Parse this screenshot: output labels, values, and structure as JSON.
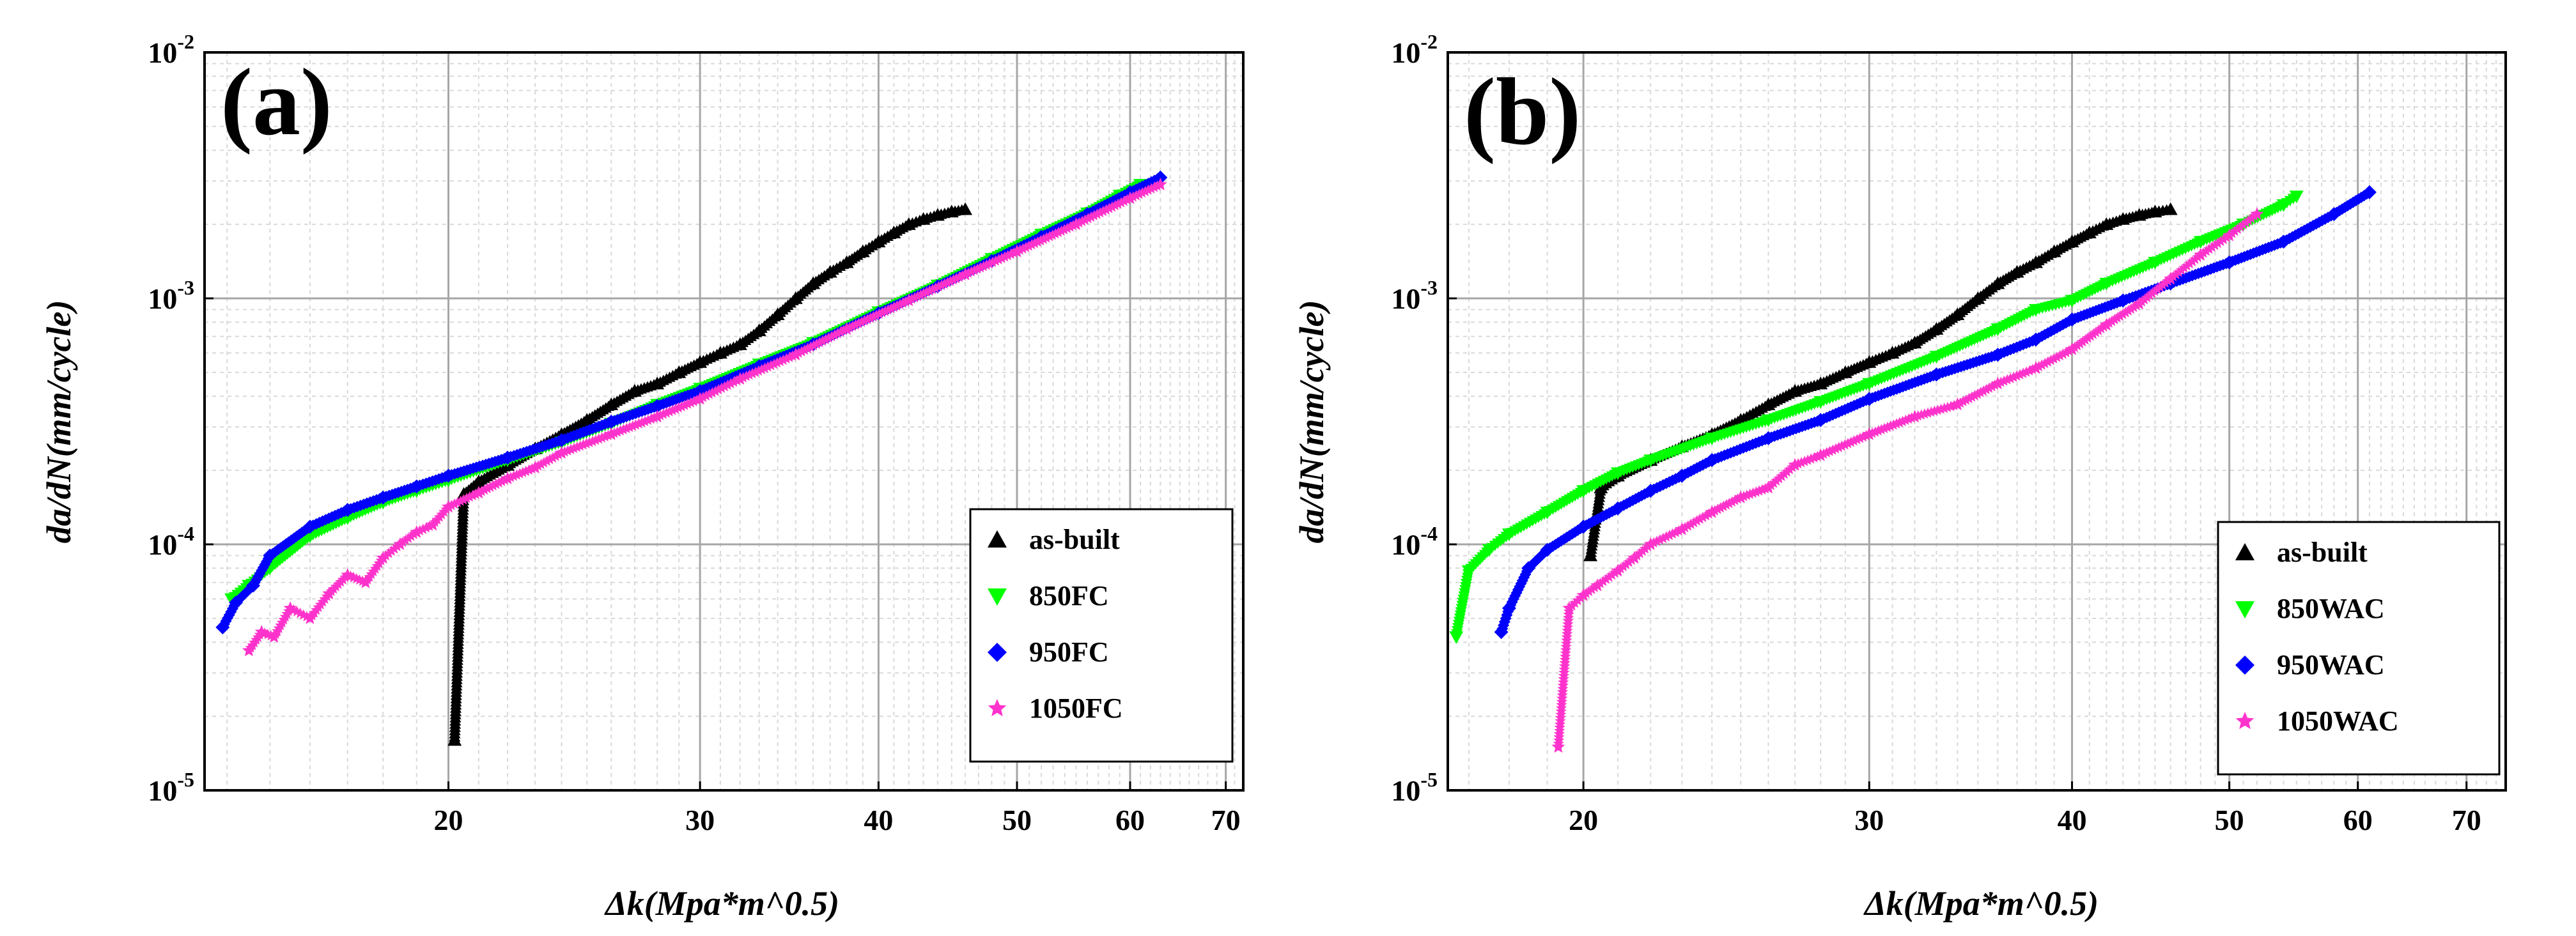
{
  "chart_data": [
    {
      "type": "scatter",
      "panel_label": "(a)",
      "xlabel": "Δk(Mpa*m^0.5)",
      "ylabel": "da/dN(mm/cycle)",
      "xscale": "log",
      "yscale": "log",
      "xlim": [
        13.5,
        72
      ],
      "ylim": [
        1e-05,
        0.01
      ],
      "x_ticks": [
        20,
        30,
        40,
        50,
        60,
        70
      ],
      "y_ticks": [
        {
          "base": "10",
          "exp": "-5",
          "value": 1e-05
        },
        {
          "base": "10",
          "exp": "-4",
          "value": 0.0001
        },
        {
          "base": "10",
          "exp": "-3",
          "value": 0.001
        },
        {
          "base": "10",
          "exp": "-2",
          "value": 0.01
        }
      ],
      "grid": true,
      "legend_position": "bottom-right",
      "series": [
        {
          "name": "as-built",
          "color": "#000000",
          "marker": "triangle-up",
          "x": [
            20.2,
            20.5,
            21,
            22,
            23,
            24,
            25,
            26,
            27,
            28,
            29,
            30,
            31,
            32,
            33,
            34,
            35,
            36,
            37,
            38,
            39,
            40,
            41,
            42,
            43,
            44,
            45,
            46
          ],
          "y": [
            1.6e-05,
            0.00016,
            0.00018,
            0.00021,
            0.000245,
            0.00028,
            0.00032,
            0.00037,
            0.00042,
            0.00045,
            0.0005,
            0.00055,
            0.0006,
            0.00065,
            0.00074,
            0.00086,
            0.001,
            0.00115,
            0.00128,
            0.0014,
            0.00155,
            0.0017,
            0.00185,
            0.002,
            0.0021,
            0.00218,
            0.00225,
            0.0023
          ]
        },
        {
          "name": "850FC",
          "color": "#00ff00",
          "marker": "triangle-down",
          "x": [
            14.1,
            14.5,
            15,
            16,
            17,
            18,
            19,
            20,
            22,
            24,
            26,
            28,
            30,
            33,
            36,
            40,
            44,
            48,
            52,
            56,
            59,
            61
          ],
          "y": [
            6e-05,
            6.8e-05,
            8e-05,
            0.000108,
            0.000128,
            0.000148,
            0.000165,
            0.000182,
            0.00022,
            0.00026,
            0.00031,
            0.00037,
            0.00043,
            0.00054,
            0.00066,
            0.00088,
            0.00113,
            0.00145,
            0.00182,
            0.00222,
            0.00262,
            0.0029
          ]
        },
        {
          "name": "950FC",
          "color": "#0000ff",
          "marker": "diamond",
          "x": [
            13.9,
            14.2,
            14.6,
            15,
            16,
            17,
            18,
            19,
            20,
            22,
            24,
            26,
            28,
            30,
            33,
            36,
            40,
            44,
            48,
            52,
            56,
            60,
            63
          ],
          "y": [
            4.6e-05,
            5.8e-05,
            6.8e-05,
            9e-05,
            0.000118,
            0.000138,
            0.000155,
            0.000172,
            0.00019,
            0.000225,
            0.000265,
            0.000315,
            0.000365,
            0.00042,
            0.00053,
            0.00065,
            0.00087,
            0.00112,
            0.00142,
            0.00178,
            0.0022,
            0.0027,
            0.0031
          ]
        },
        {
          "name": "1050FC",
          "color": "#ff33cc",
          "marker": "star",
          "x": [
            14.5,
            14.8,
            15.1,
            15.5,
            16,
            16.5,
            17,
            17.5,
            18,
            18.5,
            19,
            19.5,
            20,
            21,
            22,
            23,
            24,
            26,
            28,
            30,
            32,
            35,
            38,
            42,
            46,
            50,
            55,
            60,
            63
          ],
          "y": [
            3.7e-05,
            4.4e-05,
            4.2e-05,
            5.5e-05,
            5e-05,
            6.3e-05,
            7.5e-05,
            7e-05,
            8.8e-05,
            0.0001,
            0.000112,
            0.00012,
            0.000142,
            0.000162,
            0.000185,
            0.000205,
            0.000235,
            0.00028,
            0.00033,
            0.00039,
            0.00047,
            0.00059,
            0.00075,
            0.00098,
            0.00125,
            0.00155,
            0.002,
            0.00255,
            0.0029
          ]
        }
      ]
    },
    {
      "type": "scatter",
      "panel_label": "(b)",
      "xlabel": "Δk(Mpa*m^0.5)",
      "ylabel": "da/dN(mm/cycle)",
      "xscale": "log",
      "yscale": "log",
      "xlim": [
        16.5,
        74
      ],
      "ylim": [
        1e-05,
        0.01
      ],
      "x_ticks": [
        20,
        30,
        40,
        50,
        60,
        70
      ],
      "y_ticks": [
        {
          "base": "10",
          "exp": "-5",
          "value": 1e-05
        },
        {
          "base": "10",
          "exp": "-4",
          "value": 0.0001
        },
        {
          "base": "10",
          "exp": "-3",
          "value": 0.001
        },
        {
          "base": "10",
          "exp": "-2",
          "value": 0.01
        }
      ],
      "grid": true,
      "legend_position": "bottom-right",
      "series": [
        {
          "name": "as-built",
          "color": "#000000",
          "marker": "triangle-up",
          "x": [
            20.2,
            20.5,
            21,
            22,
            23,
            24,
            25,
            26,
            27,
            28,
            29,
            30,
            31,
            32,
            33,
            34,
            35,
            36,
            37,
            38,
            39,
            40,
            41,
            42,
            43,
            44,
            45,
            46
          ],
          "y": [
            9e-05,
            0.00017,
            0.00019,
            0.00022,
            0.00025,
            0.00028,
            0.00032,
            0.00037,
            0.00042,
            0.00045,
            0.0005,
            0.00055,
            0.0006,
            0.00066,
            0.00075,
            0.00086,
            0.001,
            0.00115,
            0.00128,
            0.0014,
            0.00155,
            0.0017,
            0.00185,
            0.002,
            0.0021,
            0.00218,
            0.00225,
            0.0023
          ]
        },
        {
          "name": "850WAC",
          "color": "#00ff00",
          "marker": "triangle-down",
          "x": [
            16.7,
            17,
            17.5,
            18,
            19,
            20,
            21,
            22,
            24,
            26,
            28,
            30,
            33,
            36,
            38,
            40,
            42,
            45,
            48,
            51,
            54,
            55
          ],
          "y": [
            4.2e-05,
            7.8e-05,
            9.5e-05,
            0.00011,
            0.000135,
            0.000165,
            0.000195,
            0.00022,
            0.00027,
            0.00032,
            0.00038,
            0.00045,
            0.00058,
            0.00075,
            0.0009,
            0.00098,
            0.00115,
            0.0014,
            0.0017,
            0.002,
            0.0024,
            0.0026
          ]
        },
        {
          "name": "950WAC",
          "color": "#0000ff",
          "marker": "diamond",
          "x": [
            17.8,
            18,
            18.5,
            19,
            20,
            21,
            22,
            23,
            24,
            26,
            28,
            30,
            33,
            36,
            38,
            40,
            43,
            46,
            50,
            54,
            58,
            61
          ],
          "y": [
            4.4e-05,
            5.5e-05,
            8e-05,
            9.5e-05,
            0.000118,
            0.00014,
            0.000165,
            0.00019,
            0.00022,
            0.00027,
            0.00032,
            0.00039,
            0.00049,
            0.00059,
            0.00068,
            0.00082,
            0.00098,
            0.00115,
            0.0014,
            0.0017,
            0.0022,
            0.0027
          ]
        },
        {
          "name": "1050WAC",
          "color": "#ff33cc",
          "marker": "star",
          "x": [
            19.3,
            19.6,
            20,
            20.4,
            21,
            21.5,
            22,
            23,
            24,
            25,
            26,
            27,
            28,
            30,
            32,
            34,
            36,
            38,
            40,
            42,
            44,
            46,
            48,
            50,
            52
          ],
          "y": [
            1.5e-05,
            5.5e-05,
            6.2e-05,
            6.8e-05,
            7.8e-05,
            8.8e-05,
            0.0001,
            0.000115,
            0.000135,
            0.000155,
            0.00017,
            0.00021,
            0.00023,
            0.00028,
            0.00033,
            0.00037,
            0.00045,
            0.00052,
            0.00062,
            0.00078,
            0.00095,
            0.0012,
            0.0015,
            0.0018,
            0.0022
          ]
        }
      ]
    }
  ]
}
